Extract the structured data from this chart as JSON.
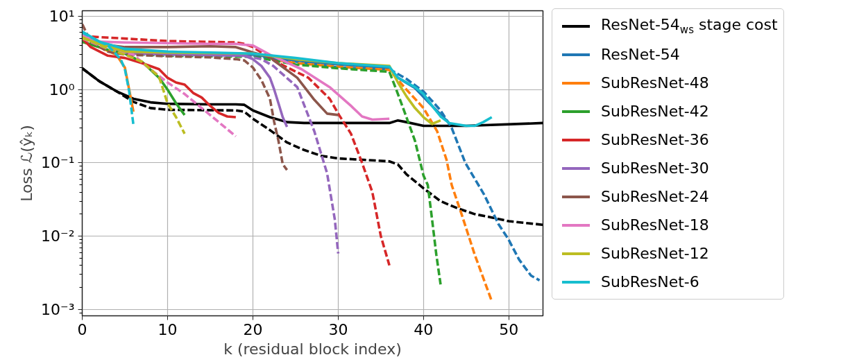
{
  "chart_data": {
    "type": "line",
    "xlabel": "k (residual block index)",
    "ylabel": "Loss ℒ(ŷₖ)",
    "log": "y",
    "grid": true,
    "legend": "right",
    "xlim": [
      0,
      54
    ],
    "xticks": [
      0,
      10,
      20,
      30,
      40,
      50
    ],
    "ylim": [
      0.00082,
      11.9
    ],
    "yticks": [
      {
        "value": 0.001,
        "label": "10⁻³"
      },
      {
        "value": 0.01,
        "label": "10⁻²"
      },
      {
        "value": 0.1,
        "label": "10⁻¹"
      },
      {
        "value": 1,
        "label": "10⁰"
      },
      {
        "value": 10,
        "label": "10¹"
      }
    ],
    "series": [
      {
        "name": "ResNet-54$_{ws}$ stage cost",
        "color": "#000000",
        "line_style": "solid",
        "x": [
          0,
          2,
          4,
          6,
          8,
          10,
          15,
          18,
          19,
          20,
          22,
          24,
          26,
          30,
          36,
          37,
          38,
          40,
          45,
          54
        ],
        "values": [
          1.95,
          1.3,
          0.95,
          0.75,
          0.67,
          0.64,
          0.63,
          0.63,
          0.62,
          0.52,
          0.42,
          0.36,
          0.35,
          0.35,
          0.35,
          0.38,
          0.36,
          0.32,
          0.32,
          0.35
        ]
      },
      {
        "color": "#000000",
        "line_style": "dashed",
        "x": [
          0,
          2,
          4,
          6,
          8,
          10,
          18,
          19,
          20,
          22,
          24,
          26,
          28,
          30,
          33,
          36,
          37,
          38,
          40,
          42,
          44,
          46,
          48,
          50,
          54
        ],
        "values": [
          1.95,
          1.3,
          0.95,
          0.68,
          0.56,
          0.53,
          0.52,
          0.5,
          0.4,
          0.28,
          0.19,
          0.15,
          0.125,
          0.115,
          0.11,
          0.105,
          0.095,
          0.07,
          0.045,
          0.03,
          0.024,
          0.02,
          0.018,
          0.016,
          0.0143
        ]
      },
      {
        "name": "ResNet-54",
        "color": "#1f77b4",
        "line_style": "solid",
        "x": [
          0,
          2,
          5,
          10,
          20,
          25,
          30,
          36,
          37,
          39,
          41,
          43
        ],
        "values": [
          6,
          4.5,
          3.5,
          3.2,
          3.0,
          2.5,
          2.2,
          2.0,
          1.45,
          1.05,
          0.6,
          0.35
        ]
      },
      {
        "color": "#1f77b4",
        "line_style": "dashed",
        "x": [
          0,
          5,
          20,
          30,
          36,
          38,
          40,
          42,
          43.3,
          44.9,
          47.1,
          48.8,
          49.9,
          51.2,
          52.6,
          53.6
        ],
        "values": [
          5.5,
          3.2,
          2.9,
          2.0,
          1.9,
          1.4,
          0.94,
          0.52,
          0.3,
          0.1,
          0.037,
          0.0145,
          0.0093,
          0.0048,
          0.0029,
          0.0025
        ]
      },
      {
        "name": "SubResNet-48",
        "color": "#ff7f0e",
        "line_style": "solid",
        "x": [
          0,
          2,
          4,
          5,
          5.5,
          6
        ],
        "values": [
          4.5,
          3.8,
          3.0,
          2.0,
          1.0,
          0.5
        ]
      },
      {
        "color": "#ff7f0e",
        "line_style": "dashed",
        "x": [
          23,
          25,
          30,
          36,
          38,
          40,
          41.6,
          42.7,
          43.3,
          44.4,
          46,
          48
        ],
        "values": [
          2.5,
          2.3,
          2.05,
          1.85,
          1.0,
          0.56,
          0.27,
          0.11,
          0.05,
          0.021,
          0.0056,
          0.0013
        ]
      },
      {
        "name": "SubResNet-42",
        "color": "#2ca02c",
        "line_style": "solid",
        "x": [
          0,
          3,
          5,
          7,
          9,
          10,
          11,
          12
        ],
        "values": [
          4.5,
          3.5,
          3.1,
          2.4,
          1.45,
          1.0,
          0.65,
          0.45
        ]
      },
      {
        "color": "#2ca02c",
        "line_style": "dashed",
        "x": [
          0,
          5,
          10,
          20,
          25,
          30,
          36,
          37,
          38,
          39,
          40,
          40.5,
          41,
          41.5,
          42
        ],
        "values": [
          5,
          3.1,
          2.9,
          2.8,
          2.2,
          1.95,
          1.75,
          0.87,
          0.42,
          0.2,
          0.067,
          0.05,
          0.017,
          0.0056,
          0.0022
        ]
      },
      {
        "name": "SubResNet-36",
        "color": "#d62728",
        "line_style": "solid",
        "x": [
          0,
          1,
          3,
          5,
          7,
          9,
          10,
          11,
          12,
          13,
          14,
          15,
          16,
          17,
          18
        ],
        "values": [
          5,
          3.8,
          2.9,
          2.7,
          2.3,
          1.9,
          1.45,
          1.25,
          1.17,
          0.9,
          0.78,
          0.6,
          0.48,
          0.43,
          0.42
        ]
      },
      {
        "color": "#d62728",
        "line_style": "dashed",
        "x": [
          0,
          2,
          10,
          18,
          19,
          20,
          23,
          26.5,
          29,
          30.1,
          31.5,
          32.8,
          34,
          35,
          36
        ],
        "values": [
          5.4,
          5.2,
          4.6,
          4.4,
          4.2,
          3.8,
          2.3,
          1.45,
          0.75,
          0.45,
          0.25,
          0.1,
          0.04,
          0.01,
          0.004
        ]
      },
      {
        "name": "SubResNet-30",
        "color": "#9467bd",
        "line_style": "solid",
        "x": [
          0,
          2,
          5,
          6,
          10,
          19,
          20,
          21,
          22,
          22.5,
          23,
          23.5,
          24
        ],
        "values": [
          6,
          4.5,
          3.2,
          3.1,
          3.0,
          2.9,
          2.6,
          2.1,
          1.45,
          1.0,
          0.65,
          0.42,
          0.31
        ]
      },
      {
        "color": "#9467bd",
        "line_style": "dashed",
        "x": [
          0,
          2,
          4,
          6,
          10,
          18,
          19,
          21,
          22.4,
          25.2,
          27.2,
          28.7,
          29.6,
          30
        ],
        "values": [
          5,
          4.0,
          3.4,
          3.1,
          3.0,
          2.95,
          2.9,
          2.6,
          2.1,
          1.08,
          0.27,
          0.072,
          0.017,
          0.0058
        ]
      },
      {
        "name": "SubResNet-24",
        "color": "#8c564b",
        "line_style": "solid",
        "x": [
          0,
          2,
          5,
          10,
          15,
          18,
          19,
          20,
          22,
          22.4,
          25.2,
          27.1,
          28.7,
          30
        ],
        "values": [
          5.5,
          4.2,
          3.8,
          3.8,
          3.9,
          3.8,
          3.5,
          3.2,
          2.8,
          2.52,
          1.45,
          0.75,
          0.47,
          0.45
        ]
      },
      {
        "color": "#8c564b",
        "line_style": "dashed",
        "x": [
          0,
          1,
          3,
          5,
          10,
          15,
          18,
          19,
          20,
          21,
          22,
          22.5,
          23,
          23.5,
          24
        ],
        "values": [
          7.8,
          4.5,
          3.3,
          3.0,
          2.85,
          2.75,
          2.6,
          2.5,
          2.0,
          1.35,
          0.75,
          0.36,
          0.2,
          0.096,
          0.08
        ]
      },
      {
        "name": "SubResNet-18",
        "color": "#e377c2",
        "line_style": "solid",
        "x": [
          0,
          2,
          5,
          10,
          15,
          18,
          19,
          20,
          22,
          25.7,
          29,
          31.5,
          32.8,
          34,
          36
        ],
        "values": [
          5.5,
          4.5,
          4.4,
          4.3,
          4.2,
          4.2,
          4.1,
          4.0,
          3.0,
          1.9,
          1.08,
          0.6,
          0.43,
          0.39,
          0.4
        ]
      },
      {
        "color": "#e377c2",
        "line_style": "dashed",
        "x": [
          0,
          3,
          6,
          7.5,
          10,
          12,
          14,
          16,
          18
        ],
        "values": [
          5,
          3.6,
          3.0,
          2.1,
          1.25,
          0.87,
          0.56,
          0.36,
          0.23
        ]
      },
      {
        "name": "SubResNet-12",
        "color": "#bcbd22",
        "line_style": "solid",
        "x": [
          0,
          5,
          10,
          20,
          25,
          30,
          36,
          37,
          38,
          39,
          40,
          41,
          42
        ],
        "values": [
          5,
          3.3,
          3.2,
          3.1,
          2.6,
          2.3,
          2.1,
          1.25,
          0.81,
          0.56,
          0.42,
          0.34,
          0.38
        ]
      },
      {
        "color": "#bcbd22",
        "line_style": "dashed",
        "x": [
          0,
          3,
          5,
          7,
          9,
          10,
          11,
          12
        ],
        "values": [
          5.2,
          3.6,
          3.0,
          2.4,
          1.5,
          0.65,
          0.42,
          0.25
        ]
      },
      {
        "name": "SubResNet-6",
        "color": "#17becf",
        "line_style": "solid",
        "x": [
          0,
          2,
          5,
          10,
          15,
          20,
          25,
          30,
          36,
          37,
          39,
          40,
          41,
          42,
          43,
          45,
          46,
          47,
          48
        ],
        "values": [
          6.2,
          4.5,
          3.6,
          3.3,
          3.2,
          3.1,
          2.7,
          2.3,
          2.05,
          1.45,
          1.08,
          0.87,
          0.6,
          0.43,
          0.35,
          0.32,
          0.32,
          0.36,
          0.42
        ]
      },
      {
        "color": "#17becf",
        "line_style": "dashed",
        "x": [
          0,
          2,
          3,
          4,
          4.5,
          5,
          5.5,
          5.8,
          6
        ],
        "values": [
          6,
          4.5,
          4.0,
          3.0,
          2.6,
          1.9,
          0.95,
          0.5,
          0.33
        ]
      }
    ]
  }
}
